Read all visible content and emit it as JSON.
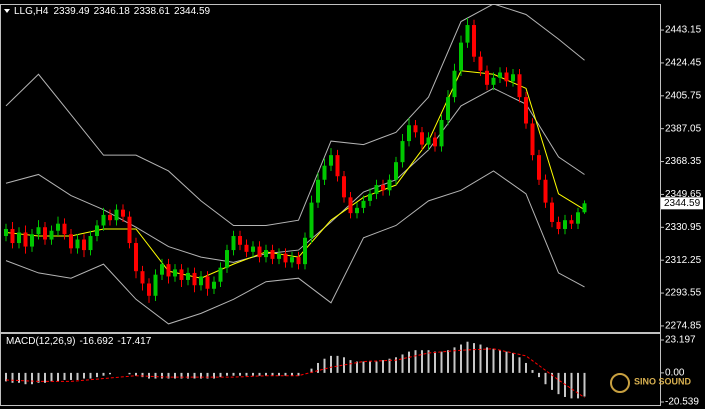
{
  "chart_data": [
    {
      "type": "candlestick",
      "title": "LLG,H4",
      "up_color": "#00c800",
      "down_color": "#ff0000",
      "open": [
        2326,
        2330,
        2322,
        2328,
        2320,
        2327,
        2331,
        2324,
        2329,
        2333,
        2327,
        2319,
        2324,
        2318,
        2326,
        2332,
        2338,
        2335,
        2341,
        2337,
        2322,
        2306,
        2299,
        2292,
        2304,
        2310,
        2303,
        2307,
        2301,
        2305,
        2298,
        2303,
        2296,
        2300,
        2308,
        2318,
        2326,
        2321,
        2317,
        2320,
        2314,
        2318,
        2313,
        2316,
        2311,
        2314,
        2310,
        2325,
        2345,
        2358,
        2366,
        2372,
        2360,
        2348,
        2339,
        2342,
        2346,
        2350,
        2355,
        2352,
        2358,
        2368,
        2380,
        2389,
        2385,
        2378,
        2382,
        2377,
        2392,
        2405,
        2420,
        2436,
        2446,
        2428,
        2420,
        2412,
        2416,
        2419,
        2414,
        2418,
        2405,
        2390,
        2372,
        2358,
        2345,
        2334,
        2330,
        2335,
        2333,
        2339.49
      ],
      "high": [
        2333,
        2334,
        2331,
        2332,
        2330,
        2335,
        2334,
        2332,
        2337,
        2336,
        2330,
        2327,
        2327,
        2329,
        2335,
        2342,
        2341,
        2344,
        2344,
        2340,
        2325,
        2309,
        2302,
        2307,
        2313,
        2313,
        2310,
        2310,
        2308,
        2308,
        2306,
        2306,
        2303,
        2311,
        2321,
        2329,
        2329,
        2324,
        2323,
        2323,
        2321,
        2321,
        2319,
        2319,
        2317,
        2317,
        2328,
        2349,
        2362,
        2370,
        2376,
        2375,
        2363,
        2351,
        2345,
        2349,
        2353,
        2358,
        2358,
        2361,
        2371,
        2384,
        2393,
        2392,
        2388,
        2385,
        2385,
        2395,
        2409,
        2424,
        2440,
        2450,
        2449,
        2431,
        2423,
        2419,
        2422,
        2422,
        2421,
        2421,
        2408,
        2393,
        2375,
        2361,
        2348,
        2337,
        2338,
        2338,
        2342,
        2346.18
      ],
      "low": [
        2323,
        2319,
        2319,
        2316,
        2317,
        2324,
        2321,
        2321,
        2326,
        2324,
        2316,
        2316,
        2314,
        2315,
        2323,
        2329,
        2332,
        2332,
        2334,
        2319,
        2302,
        2295,
        2288,
        2289,
        2301,
        2299,
        2300,
        2297,
        2298,
        2294,
        2295,
        2292,
        2293,
        2297,
        2305,
        2315,
        2318,
        2314,
        2314,
        2311,
        2311,
        2310,
        2310,
        2308,
        2308,
        2307,
        2307,
        2322,
        2342,
        2355,
        2363,
        2357,
        2345,
        2336,
        2336,
        2339,
        2343,
        2347,
        2349,
        2349,
        2355,
        2365,
        2377,
        2382,
        2375,
        2375,
        2374,
        2374,
        2389,
        2402,
        2417,
        2433,
        2425,
        2417,
        2409,
        2409,
        2413,
        2411,
        2411,
        2402,
        2387,
        2369,
        2355,
        2342,
        2331,
        2327,
        2327,
        2330,
        2330,
        2338.61
      ],
      "close": [
        2330,
        2322,
        2328,
        2320,
        2327,
        2331,
        2324,
        2329,
        2333,
        2327,
        2319,
        2324,
        2318,
        2326,
        2332,
        2338,
        2335,
        2341,
        2337,
        2322,
        2306,
        2299,
        2292,
        2304,
        2310,
        2303,
        2307,
        2301,
        2305,
        2298,
        2303,
        2296,
        2300,
        2308,
        2318,
        2326,
        2321,
        2317,
        2320,
        2314,
        2318,
        2313,
        2316,
        2311,
        2314,
        2310,
        2325,
        2345,
        2358,
        2366,
        2372,
        2360,
        2348,
        2339,
        2342,
        2346,
        2350,
        2355,
        2352,
        2358,
        2368,
        2380,
        2389,
        2385,
        2378,
        2382,
        2377,
        2392,
        2405,
        2420,
        2436,
        2446,
        2428,
        2420,
        2412,
        2416,
        2419,
        2414,
        2418,
        2405,
        2390,
        2372,
        2358,
        2345,
        2334,
        2330,
        2335,
        2333,
        2339.49,
        2344.59
      ],
      "lines": [
        {
          "color": "#b4b4b4",
          "x": [
            0,
            5,
            10,
            15,
            20,
            25,
            30,
            35,
            40,
            45,
            50,
            55,
            60,
            65,
            70,
            75,
            80,
            85,
            89
          ],
          "values": [
            2400,
            2418,
            2395,
            2372,
            2372,
            2363,
            2346,
            2332,
            2332,
            2335,
            2380,
            2378,
            2385,
            2405,
            2448,
            2458,
            2452,
            2438,
            2426
          ]
        },
        {
          "color": "#b4b4b4",
          "x": [
            0,
            5,
            10,
            15,
            20,
            25,
            30,
            35,
            40,
            45,
            50,
            55,
            60,
            65,
            70,
            75,
            80,
            85,
            89
          ],
          "values": [
            2312,
            2305,
            2302,
            2310,
            2290,
            2276,
            2282,
            2290,
            2300,
            2302,
            2288,
            2325,
            2332,
            2346,
            2352,
            2363,
            2350,
            2305,
            2297
          ]
        },
        {
          "color": "#b4b4b4",
          "x": [
            0,
            5,
            10,
            15,
            20,
            25,
            30,
            35,
            40,
            45,
            50,
            55,
            60,
            65,
            70,
            75,
            80,
            85,
            89
          ],
          "values": [
            2356,
            2361,
            2349,
            2341,
            2331,
            2320,
            2314,
            2311,
            2316,
            2318,
            2334,
            2351,
            2358,
            2375,
            2400,
            2410,
            2401,
            2371,
            2361
          ]
        },
        {
          "color": "#ffff00",
          "x": [
            0,
            5,
            10,
            15,
            20,
            25,
            30,
            35,
            40,
            45,
            50,
            55,
            60,
            65,
            70,
            75,
            80,
            85,
            89
          ],
          "values": [
            2328,
            2326,
            2326,
            2330,
            2330,
            2306,
            2302,
            2310,
            2317,
            2314,
            2335,
            2348,
            2355,
            2380,
            2420,
            2418,
            2410,
            2350,
            2341
          ]
        }
      ],
      "ylim": [
        2271.4,
        2457.4
      ],
      "yticks": [
        2443.15,
        2424.45,
        2405.75,
        2387.05,
        2368.35,
        2349.65,
        2330.95,
        2312.25,
        2293.55,
        2274.85
      ]
    },
    {
      "type": "bar",
      "title": "MACD(12,26,9)",
      "color": "#c8c8c8",
      "values": [
        -6,
        -7,
        -7,
        -8,
        -8,
        -7,
        -7,
        -6,
        -6,
        -5,
        -5,
        -5,
        -4,
        -4,
        -3,
        -2,
        -1,
        0,
        0,
        -1,
        -2,
        -3,
        -4,
        -4,
        -4,
        -4,
        -4,
        -4,
        -4,
        -4,
        -4,
        -4,
        -4,
        -3,
        -2,
        -2,
        -2,
        -2,
        -2,
        -2,
        -2,
        -2,
        -2,
        -2,
        -2,
        -2,
        0,
        3,
        7,
        10,
        12,
        12,
        11,
        9,
        8,
        8,
        8,
        8,
        9,
        10,
        11,
        13,
        15,
        16,
        16,
        16,
        15,
        15,
        16,
        18,
        20,
        22,
        21,
        20,
        18,
        17,
        16,
        15,
        14,
        11,
        7,
        2,
        -3,
        -8,
        -12,
        -15,
        -17,
        -18,
        -18,
        -16.692
      ],
      "signal": {
        "color": "#ff0000",
        "x": [
          0,
          5,
          10,
          15,
          20,
          25,
          30,
          35,
          40,
          45,
          50,
          55,
          60,
          65,
          70,
          75,
          80,
          85,
          89
        ],
        "values": [
          -5,
          -6,
          -6,
          -4,
          -2,
          -3,
          -3,
          -3,
          -2,
          -2,
          4,
          8,
          9,
          14,
          16,
          17,
          12,
          -5,
          -17.417
        ]
      },
      "ylim": [
        -22.66,
        27.43
      ],
      "yticks": [
        23.197,
        {
          "value": 0,
          "label": "0.00"
        },
        -20.539
      ]
    }
  ],
  "watermark": "SINO SOUND"
}
